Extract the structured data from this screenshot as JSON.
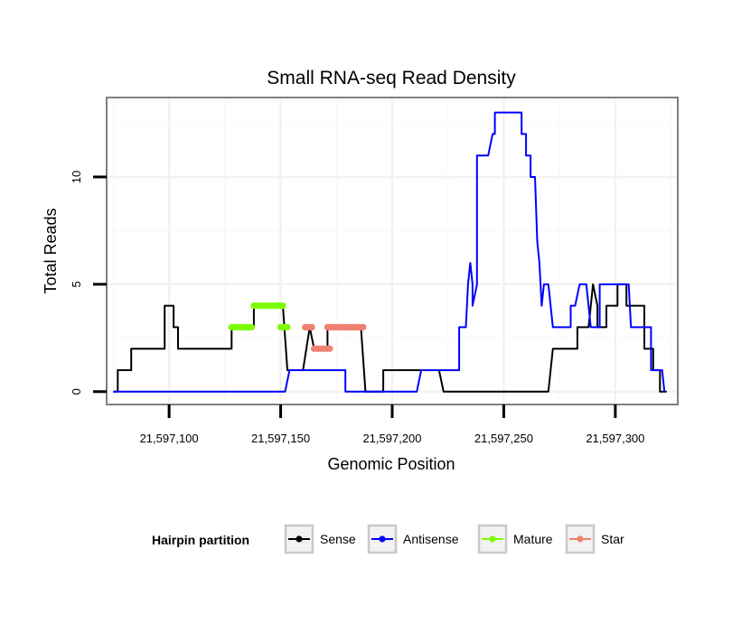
{
  "chart_data": {
    "type": "line",
    "title": "Small RNA-seq Read Density",
    "xlabel": "Genomic Position",
    "ylabel": "Total Reads",
    "xlim": [
      21597072,
      21597328
    ],
    "ylim": [
      -0.6,
      13.7
    ],
    "x_ticks": [
      {
        "value": 21597100,
        "label": "21,597,100"
      },
      {
        "value": 21597150,
        "label": "21,597,150"
      },
      {
        "value": 21597200,
        "label": "21,597,200"
      },
      {
        "value": 21597250,
        "label": "21,597,250"
      },
      {
        "value": 21597300,
        "label": "21,597,300"
      }
    ],
    "y_ticks": [
      {
        "value": 0,
        "label": "0"
      },
      {
        "value": 5,
        "label": "5"
      },
      {
        "value": 10,
        "label": "10"
      }
    ],
    "legend": {
      "title": "Hairpin partition",
      "position": "bottom",
      "entries": [
        {
          "name": "Sense",
          "color": "#000000"
        },
        {
          "name": "Antisense",
          "color": "#0000ff"
        },
        {
          "name": "Mature",
          "color": "#7cfc00"
        },
        {
          "name": "Star",
          "color": "#f08070"
        }
      ]
    },
    "series": [
      {
        "name": "Sense",
        "color": "#000000",
        "style": "line",
        "points": [
          [
            21597075,
            0
          ],
          [
            21597077,
            0
          ],
          [
            21597077,
            1
          ],
          [
            21597083,
            1
          ],
          [
            21597083,
            2
          ],
          [
            21597098,
            2
          ],
          [
            21597098,
            4
          ],
          [
            21597102,
            4
          ],
          [
            21597102,
            3
          ],
          [
            21597104,
            3
          ],
          [
            21597104,
            2
          ],
          [
            21597128,
            2
          ],
          [
            21597128,
            3
          ],
          [
            21597135,
            3
          ],
          [
            21597138,
            3
          ],
          [
            21597138,
            4
          ],
          [
            21597151,
            4
          ],
          [
            21597153,
            1
          ],
          [
            21597160,
            1
          ],
          [
            21597163,
            3
          ],
          [
            21597165,
            2
          ],
          [
            21597171,
            2
          ],
          [
            21597171,
            3
          ],
          [
            21597186,
            3
          ],
          [
            21597188,
            0
          ],
          [
            21597196,
            0
          ],
          [
            21597196,
            1
          ],
          [
            21597221,
            1
          ],
          [
            21597223,
            0
          ],
          [
            21597253,
            0
          ],
          [
            21597253,
            0
          ],
          [
            21597270,
            0
          ],
          [
            21597272,
            2
          ],
          [
            21597283,
            2
          ],
          [
            21597283,
            3
          ],
          [
            21597288,
            3
          ],
          [
            21597290,
            5
          ],
          [
            21597292,
            4
          ],
          [
            21597292,
            3
          ],
          [
            21597296,
            3
          ],
          [
            21597296,
            4
          ],
          [
            21597301,
            4
          ],
          [
            21597301,
            5
          ],
          [
            21597305,
            5
          ],
          [
            21597305,
            4
          ],
          [
            21597313,
            4
          ],
          [
            21597313,
            2
          ],
          [
            21597317,
            2
          ],
          [
            21597317,
            1
          ],
          [
            21597320,
            1
          ],
          [
            21597320,
            0
          ],
          [
            21597323,
            0
          ]
        ]
      },
      {
        "name": "Antisense",
        "color": "#0000ff",
        "style": "line",
        "points": [
          [
            21597075,
            0
          ],
          [
            21597152,
            0
          ],
          [
            21597154,
            1
          ],
          [
            21597179,
            1
          ],
          [
            21597179,
            0
          ],
          [
            21597211,
            0
          ],
          [
            21597213,
            1
          ],
          [
            21597230,
            1
          ],
          [
            21597230,
            3
          ],
          [
            21597233,
            3
          ],
          [
            21597234,
            5
          ],
          [
            21597235,
            6
          ],
          [
            21597236,
            5
          ],
          [
            21597236,
            4
          ],
          [
            21597238,
            5
          ],
          [
            21597238,
            11
          ],
          [
            21597243,
            11
          ],
          [
            21597245,
            12
          ],
          [
            21597246,
            12
          ],
          [
            21597246,
            13
          ],
          [
            21597258,
            13
          ],
          [
            21597258,
            12
          ],
          [
            21597260,
            12
          ],
          [
            21597260,
            11
          ],
          [
            21597262,
            11
          ],
          [
            21597262,
            10
          ],
          [
            21597264,
            10
          ],
          [
            21597265,
            7
          ],
          [
            21597266,
            6
          ],
          [
            21597267,
            4
          ],
          [
            21597268,
            5
          ],
          [
            21597270,
            5
          ],
          [
            21597272,
            3
          ],
          [
            21597280,
            3
          ],
          [
            21597280,
            4
          ],
          [
            21597282,
            4
          ],
          [
            21597284,
            5
          ],
          [
            21597287,
            5
          ],
          [
            21597289,
            3
          ],
          [
            21597293,
            3
          ],
          [
            21597293,
            5
          ],
          [
            21597302,
            5
          ],
          [
            21597302,
            5
          ],
          [
            21597306,
            5
          ],
          [
            21597307,
            3
          ],
          [
            21597316,
            3
          ],
          [
            21597316,
            1
          ],
          [
            21597321,
            1
          ],
          [
            21597322,
            0
          ]
        ]
      },
      {
        "name": "Mature",
        "color": "#7cfc00",
        "style": "points",
        "segments": [
          {
            "x_start": 21597128,
            "x_end": 21597137,
            "y": 3
          },
          {
            "x_start": 21597138,
            "x_end": 21597151,
            "y": 4
          },
          {
            "x_start": 21597150,
            "x_end": 21597153,
            "y": 3
          }
        ]
      },
      {
        "name": "Star",
        "color": "#f08070",
        "style": "points",
        "segments": [
          {
            "x_start": 21597161,
            "x_end": 21597164,
            "y": 3
          },
          {
            "x_start": 21597165,
            "x_end": 21597172,
            "y": 2
          },
          {
            "x_start": 21597171,
            "x_end": 21597187,
            "y": 3
          }
        ]
      }
    ]
  }
}
